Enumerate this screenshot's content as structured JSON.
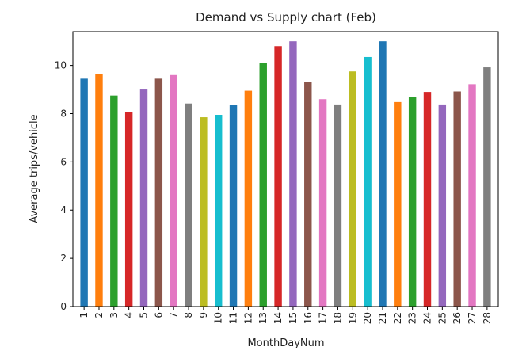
{
  "chart_data": {
    "type": "bar",
    "title": "Demand vs Supply chart (Feb)",
    "xlabel": "MonthDayNum",
    "ylabel": "Average trips/vehicle",
    "ylim": [
      0,
      11.4
    ],
    "yticks": [
      0,
      2,
      4,
      6,
      8,
      10
    ],
    "categories": [
      "1",
      "2",
      "3",
      "4",
      "5",
      "6",
      "7",
      "8",
      "9",
      "10",
      "11",
      "12",
      "13",
      "14",
      "15",
      "16",
      "17",
      "18",
      "19",
      "20",
      "21",
      "22",
      "23",
      "24",
      "25",
      "26",
      "27",
      "28"
    ],
    "values": [
      9.45,
      9.65,
      8.75,
      8.05,
      9.0,
      9.45,
      9.6,
      8.42,
      7.85,
      7.95,
      8.35,
      8.95,
      10.1,
      10.8,
      11.0,
      9.32,
      8.6,
      8.38,
      9.75,
      10.35,
      11.0,
      8.48,
      8.7,
      8.9,
      8.38,
      8.92,
      9.22,
      9.92
    ],
    "colors": [
      "#1f77b4",
      "#ff7f0e",
      "#2ca02c",
      "#d62728",
      "#9467bd",
      "#8c564b",
      "#e377c2",
      "#7f7f7f",
      "#bcbd22",
      "#17becf"
    ],
    "grid": false,
    "legend": "none"
  }
}
